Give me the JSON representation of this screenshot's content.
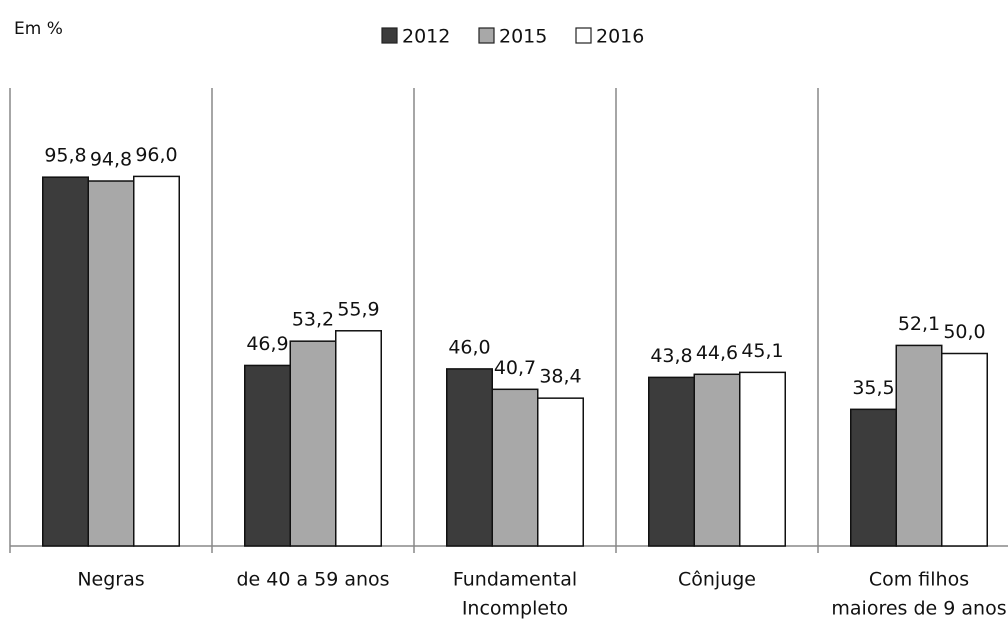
{
  "chart_data": {
    "type": "bar",
    "unit_label": "Em %",
    "categories": [
      [
        "Negras"
      ],
      [
        "de 40 a 59 anos"
      ],
      [
        "Fundamental",
        "Incompleto"
      ],
      [
        "Cônjuge"
      ],
      [
        "Com filhos",
        "maiores de 9 anos"
      ]
    ],
    "series": [
      {
        "name": "2012",
        "color": "#3c3c3c",
        "values": [
          95.8,
          46.9,
          46.0,
          43.8,
          35.5
        ],
        "value_labels": [
          "95,8",
          "46,9",
          "46,0",
          "43,8",
          "35,5"
        ]
      },
      {
        "name": "2015",
        "color": "#a8a8a8",
        "values": [
          94.8,
          53.2,
          40.7,
          44.6,
          52.1
        ],
        "value_labels": [
          "94,8",
          "53,2",
          "40,7",
          "44,6",
          "52,1"
        ]
      },
      {
        "name": "2016",
        "color": "#ffffff",
        "values": [
          96.0,
          55.9,
          38.4,
          45.1,
          50.0
        ],
        "value_labels": [
          "96,0",
          "55,9",
          "38,4",
          "45,1",
          "50,0"
        ]
      }
    ],
    "ylim": [
      0,
      120
    ],
    "legend": "top"
  }
}
